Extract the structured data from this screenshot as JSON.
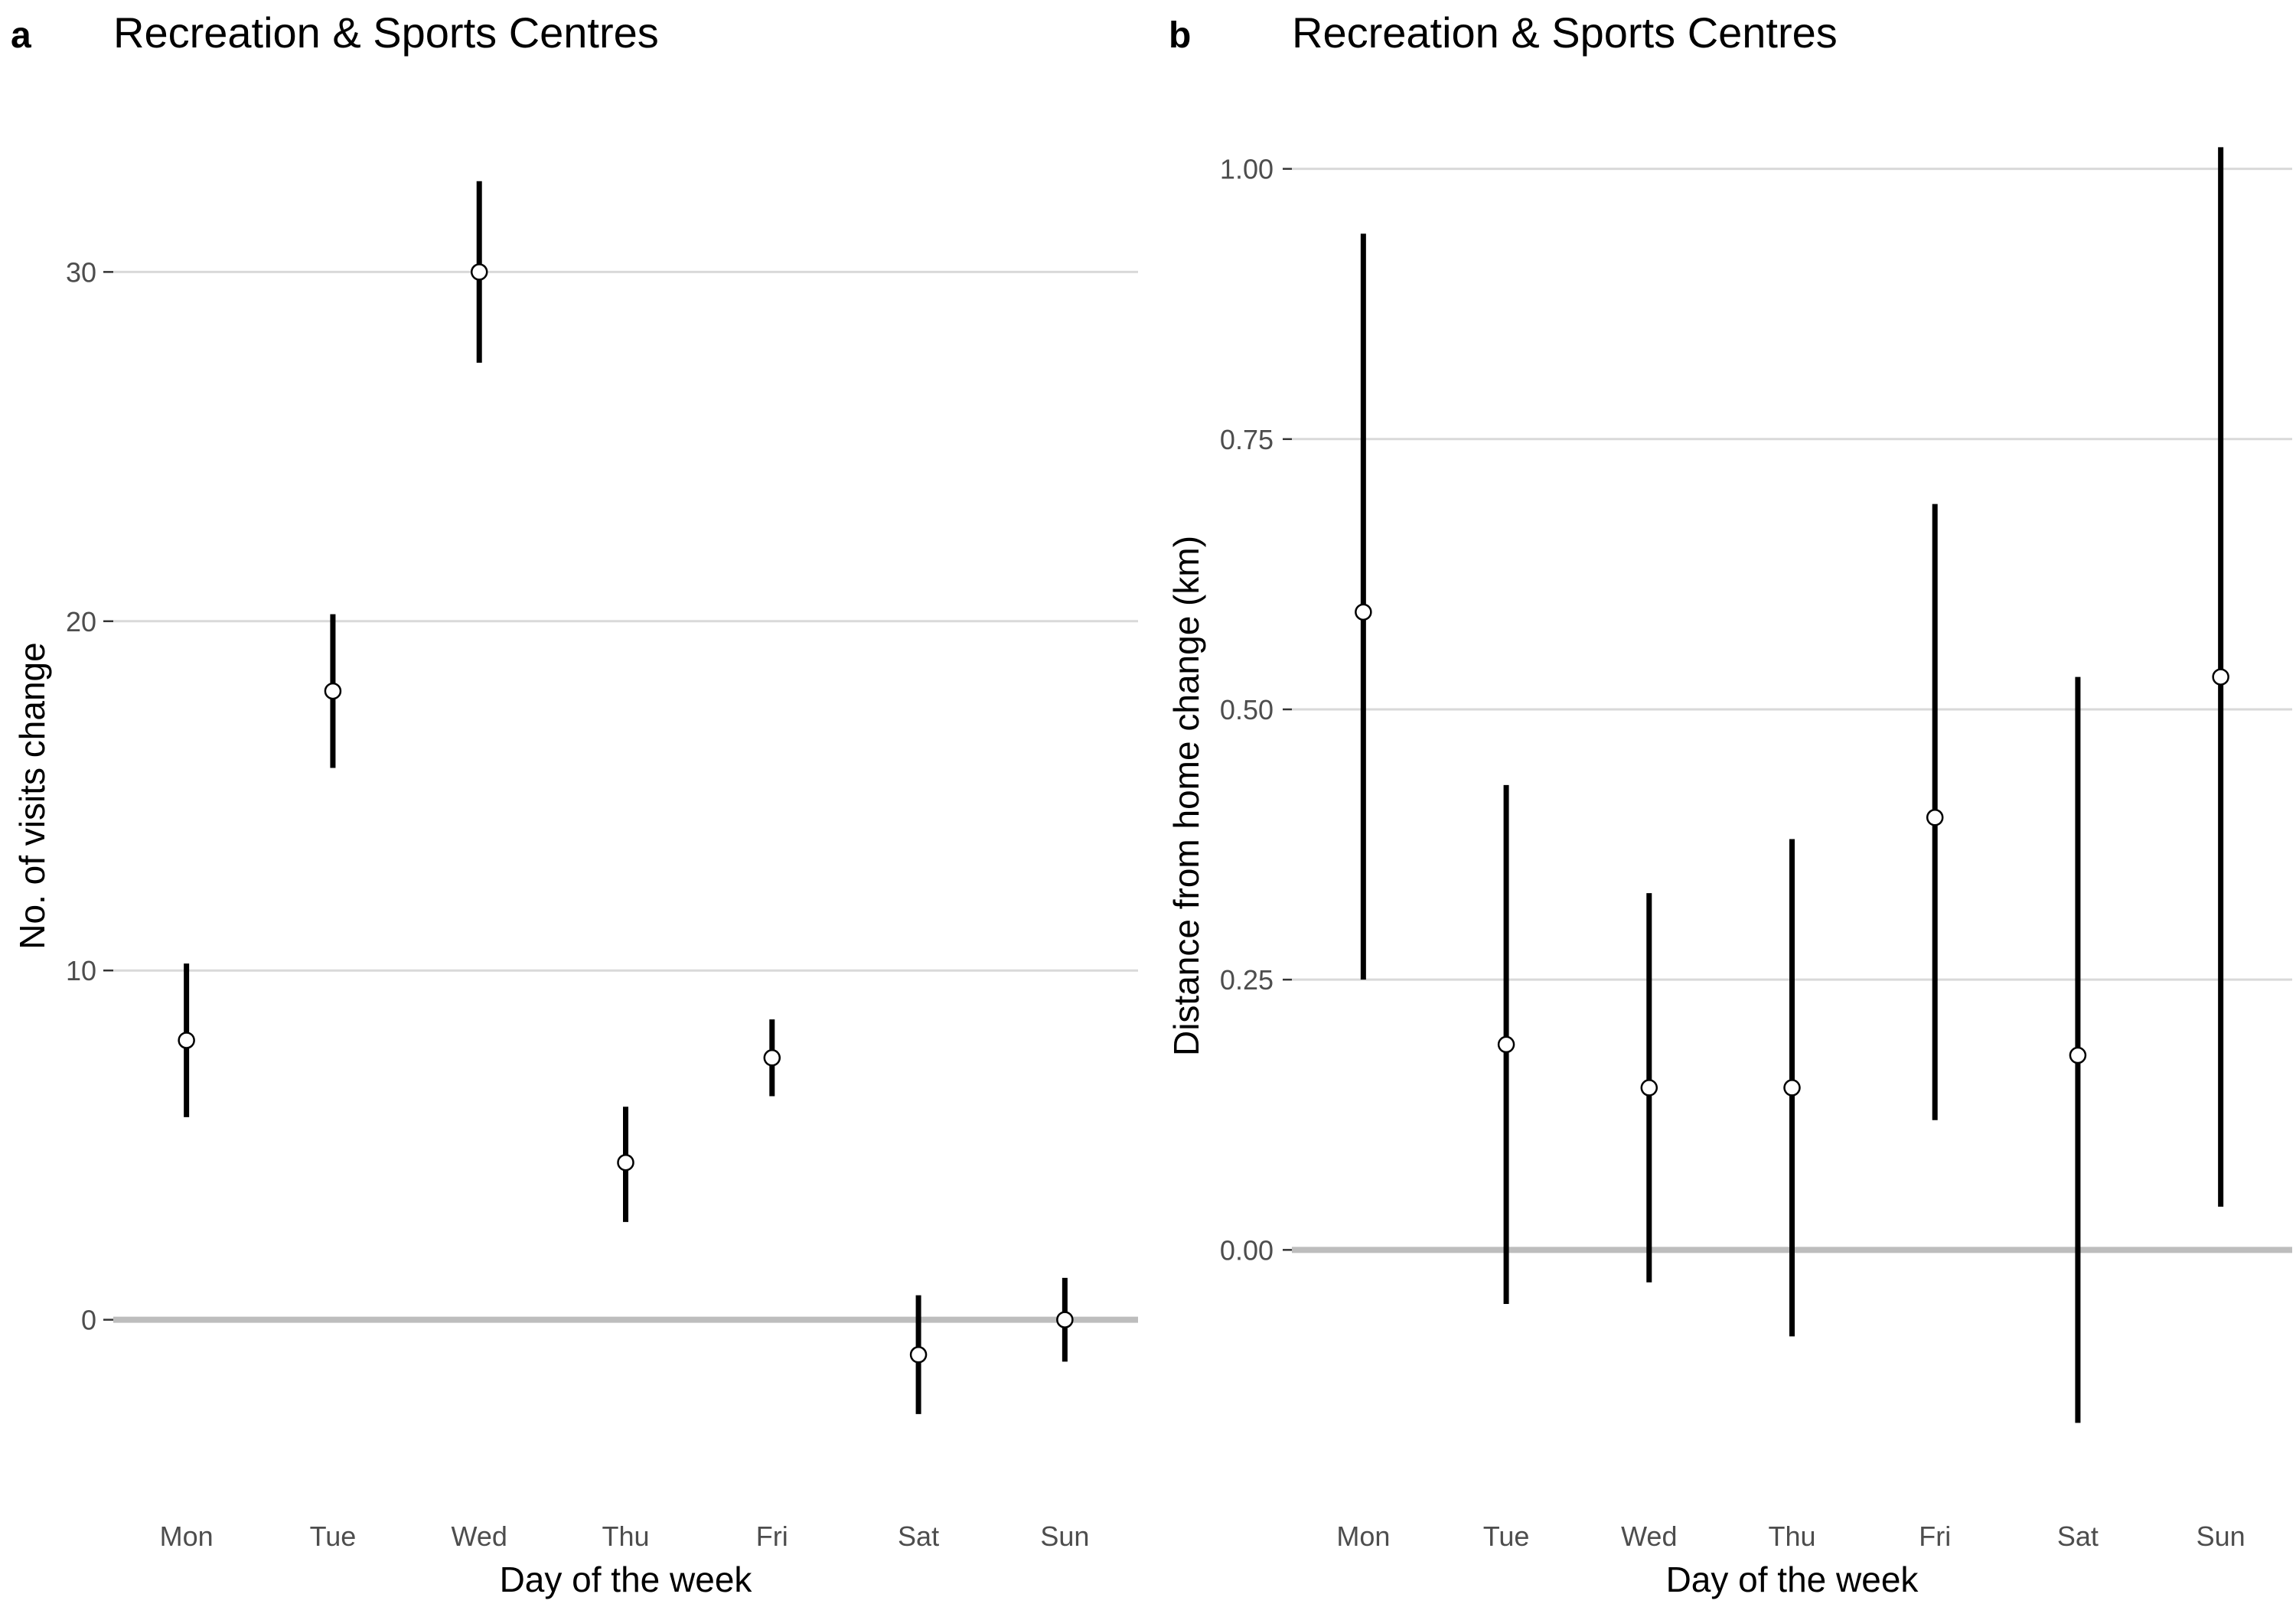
{
  "chart_data": [
    {
      "panel": "a",
      "type": "pointrange",
      "title": "Recreation & Sports Centres",
      "xlabel": "Day of the week",
      "ylabel": "No. of visits change",
      "categories": [
        "Mon",
        "Tue",
        "Wed",
        "Thu",
        "Fri",
        "Sat",
        "Sun"
      ],
      "values": [
        8.0,
        18.0,
        30.0,
        4.5,
        7.5,
        -1.0,
        0.0
      ],
      "lower": [
        5.8,
        15.8,
        27.4,
        2.8,
        6.4,
        -2.7,
        -1.2
      ],
      "upper": [
        10.2,
        20.2,
        32.6,
        6.1,
        8.6,
        0.7,
        1.2
      ],
      "yticks": [
        0,
        10,
        20,
        30
      ],
      "ytick_labels": [
        "0",
        "10",
        "20",
        "30"
      ],
      "ylim": [
        -4.5,
        34.5
      ],
      "reference_line": 0,
      "grid": "horizontal major",
      "legend": "none"
    },
    {
      "panel": "b",
      "type": "pointrange",
      "title": "Recreation & Sports Centres",
      "xlabel": "Day of the week",
      "ylabel": "Distance from home change (km)",
      "categories": [
        "Mon",
        "Tue",
        "Wed",
        "Thu",
        "Fri",
        "Sat",
        "Sun"
      ],
      "values": [
        0.59,
        0.19,
        0.15,
        0.15,
        0.4,
        0.18,
        0.53
      ],
      "lower": [
        0.25,
        -0.05,
        -0.03,
        -0.08,
        0.12,
        -0.16,
        0.04
      ],
      "upper": [
        0.94,
        0.43,
        0.33,
        0.38,
        0.69,
        0.53,
        1.02
      ],
      "yticks": [
        0.0,
        0.25,
        0.5,
        0.75,
        1.0
      ],
      "ytick_labels": [
        "0.00",
        "0.25",
        "0.50",
        "0.75",
        "1.00"
      ],
      "ylim": [
        -0.21,
        1.05
      ],
      "reference_line": 0,
      "grid": "horizontal major",
      "legend": "none"
    }
  ],
  "colors": {
    "point_fill": "#ffffff",
    "bar": "#000000",
    "grid": "#d9d9d9",
    "zero_line": "#bdbdbd",
    "tick_text": "#4d4d4d"
  }
}
